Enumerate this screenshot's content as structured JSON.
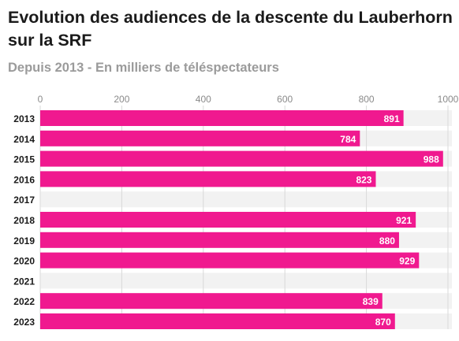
{
  "header": {
    "title": "Evolution des audiences de la descente du Lauberhorn sur la SRF",
    "subtitle": "Depuis 2013 - En milliers de téléspectateurs"
  },
  "colors": {
    "bar": "#f0198f",
    "track": "#f2f2f2",
    "grid": "#d9d9d9"
  },
  "chart_data": {
    "type": "bar",
    "orientation": "horizontal",
    "title": "Evolution des audiences de la descente du Lauberhorn sur la SRF",
    "subtitle": "Depuis 2013 - En milliers de téléspectateurs",
    "categories": [
      "2013",
      "2014",
      "2015",
      "2016",
      "2017",
      "2018",
      "2019",
      "2020",
      "2021",
      "2022",
      "2023"
    ],
    "values": [
      891,
      784,
      988,
      823,
      null,
      921,
      880,
      929,
      null,
      839,
      870
    ],
    "value_labels": [
      "891",
      "784",
      "988",
      "823",
      "",
      "921",
      "880",
      "929",
      "",
      "839",
      "870"
    ],
    "xlim": [
      0,
      1000
    ],
    "xticks": [
      0,
      200,
      400,
      600,
      800,
      1000
    ],
    "xtick_labels": [
      "0",
      "200",
      "400",
      "600",
      "800",
      "1000"
    ],
    "grid": true,
    "axis_position": "top"
  }
}
